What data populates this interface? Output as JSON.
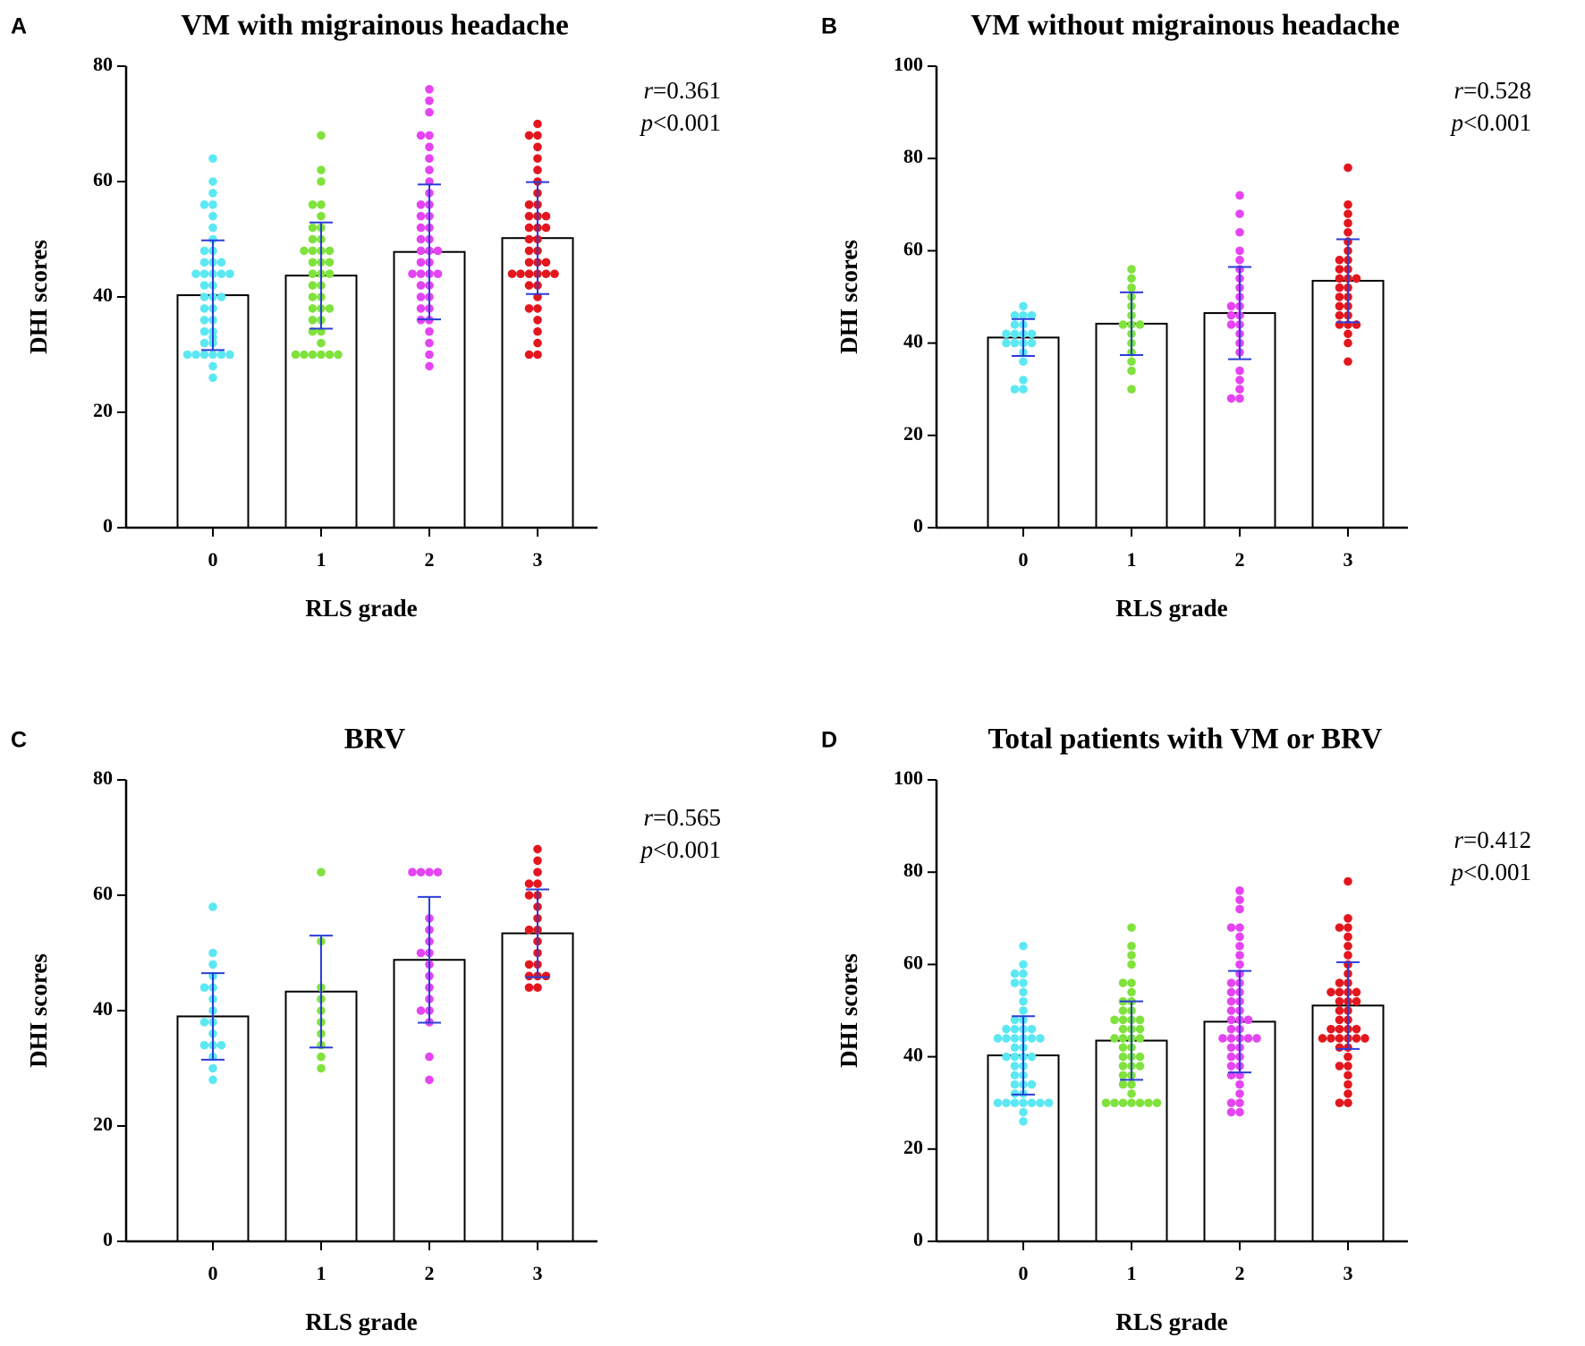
{
  "chart_data": [
    {
      "type": "bar",
      "panel_label": "A",
      "title": "VM with migrainous headache",
      "xlabel": "RLS grade",
      "ylabel": "DHI scores",
      "categories": [
        "0",
        "1",
        "2",
        "3"
      ],
      "values": [
        40.3,
        43.7,
        47.8,
        50.2
      ],
      "errors": [
        9.5,
        9.2,
        11.7,
        9.7
      ],
      "points": [
        [
          26,
          28,
          30,
          30,
          30,
          30,
          30,
          30,
          32,
          32,
          33,
          34,
          34,
          36,
          36,
          38,
          38,
          40,
          40,
          40,
          42,
          42,
          44,
          44,
          44,
          44,
          44,
          46,
          46,
          46,
          48,
          48,
          50,
          52,
          54,
          56,
          56,
          58,
          60,
          64
        ],
        [
          30,
          30,
          30,
          30,
          30,
          30,
          32,
          34,
          34,
          36,
          36,
          38,
          38,
          38,
          40,
          40,
          42,
          42,
          44,
          44,
          44,
          46,
          46,
          46,
          48,
          48,
          48,
          48,
          50,
          50,
          52,
          52,
          54,
          56,
          56,
          60,
          62,
          68
        ],
        [
          28,
          30,
          32,
          34,
          36,
          36,
          38,
          38,
          40,
          40,
          42,
          42,
          44,
          44,
          44,
          44,
          46,
          46,
          48,
          48,
          48,
          50,
          50,
          52,
          52,
          54,
          54,
          56,
          56,
          58,
          60,
          62,
          64,
          66,
          68,
          68,
          72,
          74,
          76
        ],
        [
          30,
          30,
          32,
          34,
          36,
          38,
          38,
          40,
          42,
          42,
          44,
          44,
          44,
          44,
          44,
          44,
          46,
          46,
          46,
          48,
          48,
          50,
          50,
          52,
          52,
          52,
          54,
          54,
          54,
          56,
          56,
          58,
          60,
          62,
          64,
          66,
          68,
          68,
          70
        ]
      ],
      "colors": [
        "#5ce8f2",
        "#80e23c",
        "#e444f2",
        "#e3161e"
      ],
      "error_color": "#2a3ed8",
      "ylim": [
        0,
        80
      ],
      "yticks": [
        0,
        20,
        40,
        60,
        80
      ],
      "annotations": [
        "r=0.361",
        "p<0.001"
      ]
    },
    {
      "type": "bar",
      "panel_label": "B",
      "title": "VM without migrainous headache",
      "xlabel": "RLS grade",
      "ylabel": "DHI scores",
      "categories": [
        "0",
        "1",
        "2",
        "3"
      ],
      "values": [
        41.2,
        44.2,
        46.5,
        53.5
      ],
      "errors": [
        4,
        6.8,
        10,
        9
      ],
      "points": [
        [
          30,
          30,
          32,
          36,
          38,
          40,
          40,
          40,
          40,
          42,
          42,
          42,
          42,
          44,
          44,
          46,
          46,
          46,
          48
        ],
        [
          30,
          34,
          36,
          38,
          40,
          42,
          44,
          44,
          44,
          46,
          48,
          50,
          52,
          54,
          56
        ],
        [
          28,
          28,
          30,
          32,
          34,
          38,
          40,
          42,
          44,
          44,
          46,
          46,
          48,
          48,
          50,
          52,
          54,
          56,
          58,
          60,
          64,
          68,
          72
        ],
        [
          36,
          40,
          42,
          44,
          44,
          44,
          46,
          46,
          48,
          48,
          50,
          50,
          52,
          52,
          54,
          54,
          54,
          56,
          56,
          58,
          58,
          60,
          62,
          64,
          66,
          68,
          70,
          78
        ]
      ],
      "colors": [
        "#5ce8f2",
        "#80e23c",
        "#e444f2",
        "#e3161e"
      ],
      "error_color": "#2a3ed8",
      "ylim": [
        0,
        100
      ],
      "yticks": [
        0,
        20,
        40,
        60,
        80,
        100
      ],
      "annotations": [
        "r=0.528",
        "p<0.001"
      ]
    },
    {
      "type": "bar",
      "panel_label": "C",
      "title": "BRV",
      "xlabel": "RLS grade",
      "ylabel": "DHI scores",
      "categories": [
        "0",
        "1",
        "2",
        "3"
      ],
      "values": [
        39,
        43.3,
        48.8,
        53.4
      ],
      "errors": [
        7.5,
        9.7,
        10.9,
        7.6
      ],
      "points": [
        [
          28,
          30,
          32,
          34,
          34,
          34,
          36,
          38,
          38,
          40,
          42,
          44,
          44,
          46,
          48,
          50,
          58
        ],
        [
          30,
          32,
          34,
          36,
          38,
          40,
          42,
          44,
          52,
          64
        ],
        [
          28,
          32,
          38,
          40,
          40,
          42,
          44,
          46,
          48,
          50,
          50,
          52,
          54,
          56,
          64,
          64,
          64,
          64
        ],
        [
          44,
          44,
          46,
          46,
          46,
          48,
          48,
          50,
          52,
          54,
          54,
          56,
          58,
          60,
          60,
          62,
          62,
          64,
          66,
          68
        ]
      ],
      "colors": [
        "#5ce8f2",
        "#80e23c",
        "#e444f2",
        "#e3161e"
      ],
      "error_color": "#2a3ed8",
      "ylim": [
        0,
        80
      ],
      "yticks": [
        0,
        20,
        40,
        60,
        80
      ],
      "annotations": [
        "r=0.565",
        "p<0.001"
      ]
    },
    {
      "type": "bar",
      "panel_label": "D",
      "title": "Total patients with VM or BRV",
      "xlabel": "RLS grade",
      "ylabel": "DHI scores",
      "categories": [
        "0",
        "1",
        "2",
        "3"
      ],
      "values": [
        40.3,
        43.5,
        47.6,
        51.1
      ],
      "errors": [
        8.5,
        8.5,
        11,
        9.4
      ],
      "points": [
        [
          26,
          28,
          30,
          30,
          30,
          30,
          30,
          30,
          30,
          32,
          32,
          34,
          34,
          34,
          36,
          36,
          38,
          38,
          40,
          40,
          40,
          40,
          42,
          42,
          44,
          44,
          44,
          44,
          44,
          44,
          46,
          46,
          46,
          46,
          48,
          48,
          50,
          52,
          54,
          56,
          56,
          58,
          58,
          60,
          64
        ],
        [
          30,
          30,
          30,
          30,
          30,
          30,
          30,
          32,
          34,
          34,
          36,
          36,
          38,
          38,
          38,
          40,
          40,
          40,
          42,
          42,
          44,
          44,
          44,
          44,
          46,
          46,
          46,
          48,
          48,
          48,
          48,
          50,
          50,
          52,
          52,
          54,
          56,
          56,
          60,
          62,
          64,
          68
        ],
        [
          28,
          28,
          30,
          30,
          32,
          34,
          36,
          36,
          38,
          38,
          40,
          40,
          42,
          42,
          44,
          44,
          44,
          44,
          44,
          46,
          46,
          48,
          48,
          48,
          50,
          50,
          52,
          52,
          54,
          54,
          56,
          56,
          58,
          60,
          62,
          64,
          66,
          68,
          68,
          72,
          74,
          76
        ],
        [
          30,
          30,
          32,
          34,
          36,
          38,
          38,
          40,
          42,
          42,
          44,
          44,
          44,
          44,
          44,
          44,
          46,
          46,
          46,
          46,
          48,
          48,
          50,
          50,
          52,
          52,
          52,
          54,
          54,
          54,
          54,
          56,
          56,
          58,
          60,
          62,
          64,
          66,
          68,
          68,
          70,
          78
        ]
      ],
      "colors": [
        "#5ce8f2",
        "#80e23c",
        "#e444f2",
        "#e3161e"
      ],
      "error_color": "#2a3ed8",
      "ylim": [
        0,
        100
      ],
      "yticks": [
        0,
        20,
        40,
        60,
        80,
        100
      ],
      "annotations": [
        "r=0.412",
        "p<0.001"
      ]
    }
  ]
}
